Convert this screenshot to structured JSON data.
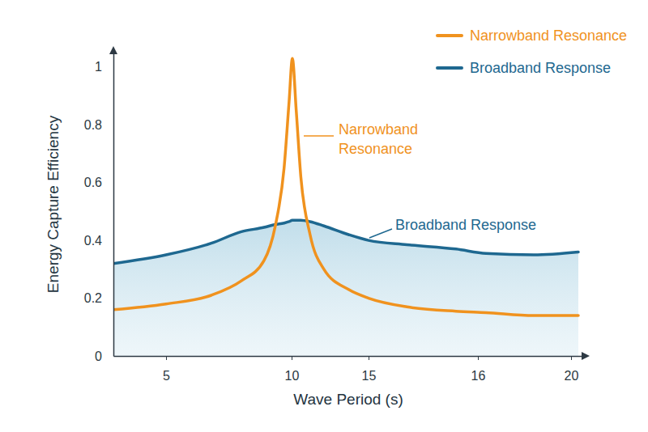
{
  "chart_data": {
    "type": "line",
    "x_label": "Wave Period (s)",
    "y_label": "Energy Capture Efficiency",
    "x": [
      3,
      5,
      6.8,
      8,
      8.9,
      9.35,
      9.7,
      9.9,
      10.05,
      10.3,
      10.6,
      11.2,
      12.1,
      13.7,
      15,
      15.35,
      15.8,
      16.35,
      18.4,
      20.3
    ],
    "series": [
      {
        "name": "Narrowband Resonance",
        "color": "#f0921e",
        "values": [
          0.16,
          0.18,
          0.21,
          0.26,
          0.33,
          0.45,
          0.65,
          0.88,
          1.03,
          0.85,
          0.62,
          0.42,
          0.3,
          0.23,
          0.2,
          0.17,
          0.155,
          0.15,
          0.14,
          0.14
        ]
      },
      {
        "name": "Broadband Response",
        "color": "#1e6890",
        "values": [
          0.32,
          0.35,
          0.39,
          0.43,
          0.445,
          0.455,
          0.46,
          0.465,
          0.47,
          0.47,
          0.47,
          0.465,
          0.45,
          0.42,
          0.4,
          0.385,
          0.37,
          0.355,
          0.35,
          0.36
        ]
      }
    ],
    "xlim": [
      3,
      20.5
    ],
    "xticks": [
      5,
      10,
      15,
      16,
      20
    ],
    "ylim": [
      0,
      1.05
    ],
    "yticks": [
      0,
      0.2,
      0.4,
      0.6,
      0.8,
      1
    ],
    "grid": false,
    "legend": "upper right",
    "annotations": [
      "Narrowband Resonance",
      "Broadband Response"
    ]
  }
}
